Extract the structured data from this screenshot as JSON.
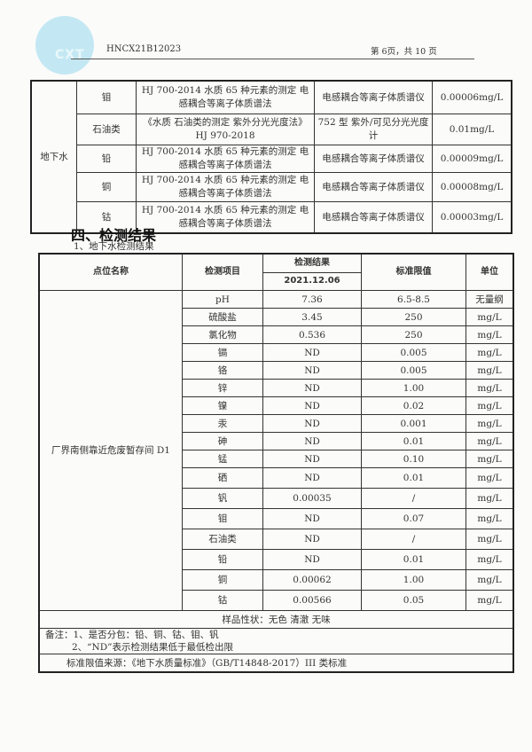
{
  "header": {
    "logo_text": "CXT",
    "report_no": "HNCX21B12023",
    "page_info": "第 6页，共 10 页"
  },
  "method_table": {
    "category": "地下水",
    "rows": [
      {
        "item": "钼",
        "method": "HJ 700-2014 水质 65 种元素的测定 电感耦合等离子体质谱法",
        "instrument": "电感耦合等离子体质谱仪",
        "limit": "0.00006mg/L"
      },
      {
        "item": "石油类",
        "method": "《水质 石油类的测定 紫外分光光度法》HJ 970-2018",
        "instrument": "752 型 紫外/可见分光光度计",
        "limit": "0.01mg/L"
      },
      {
        "item": "铅",
        "method": "HJ 700-2014 水质 65 种元素的测定 电感耦合等离子体质谱法",
        "instrument": "电感耦合等离子体质谱仪",
        "limit": "0.00009mg/L"
      },
      {
        "item": "铜",
        "method": "HJ 700-2014 水质 65 种元素的测定 电感耦合等离子体质谱法",
        "instrument": "电感耦合等离子体质谱仪",
        "limit": "0.00008mg/L"
      },
      {
        "item": "钴",
        "method": "HJ 700-2014 水质 65 种元素的测定 电感耦合等离子体质谱法",
        "instrument": "电感耦合等离子体质谱仪",
        "limit": "0.00003mg/L"
      }
    ]
  },
  "section_title": "四、检测结果",
  "subsection_title": "1、地下水检测结果",
  "results_table": {
    "headers": {
      "location": "点位名称",
      "item": "检测项目",
      "result": "检测结果",
      "date": "2021.12.06",
      "standard": "标准限值",
      "unit": "单位"
    },
    "location": "厂界南侧靠近危废暂存间 D1",
    "rows": [
      {
        "item": "pH",
        "result": "7.36",
        "standard": "6.5-8.5",
        "unit": "无量纲"
      },
      {
        "item": "硫酸盐",
        "result": "3.45",
        "standard": "250",
        "unit": "mg/L"
      },
      {
        "item": "氯化物",
        "result": "0.536",
        "standard": "250",
        "unit": "mg/L"
      },
      {
        "item": "镉",
        "result": "ND",
        "standard": "0.005",
        "unit": "mg/L"
      },
      {
        "item": "铬",
        "result": "ND",
        "standard": "0.005",
        "unit": "mg/L"
      },
      {
        "item": "锌",
        "result": "ND",
        "standard": "1.00",
        "unit": "mg/L"
      },
      {
        "item": "镍",
        "result": "ND",
        "standard": "0.02",
        "unit": "mg/L"
      },
      {
        "item": "汞",
        "result": "ND",
        "standard": "0.001",
        "unit": "mg/L"
      },
      {
        "item": "砷",
        "result": "ND",
        "standard": "0.01",
        "unit": "mg/L"
      },
      {
        "item": "锰",
        "result": "ND",
        "standard": "0.10",
        "unit": "mg/L"
      },
      {
        "item": "硒",
        "result": "ND",
        "standard": "0.01",
        "unit": "mg/L"
      },
      {
        "item": "钒",
        "result": "0.00035",
        "standard": "/",
        "unit": "mg/L"
      },
      {
        "item": "钼",
        "result": "ND",
        "standard": "0.07",
        "unit": "mg/L"
      },
      {
        "item": "石油类",
        "result": "ND",
        "standard": "/",
        "unit": "mg/L"
      },
      {
        "item": "铅",
        "result": "ND",
        "standard": "0.01",
        "unit": "mg/L"
      },
      {
        "item": "铜",
        "result": "0.00062",
        "standard": "1.00",
        "unit": "mg/L"
      },
      {
        "item": "钴",
        "result": "0.00566",
        "standard": "0.05",
        "unit": "mg/L"
      }
    ],
    "sample_desc": "样品性状：无色 清澈 无味",
    "note1": "备注：1、是否分包：铅、铜、钴、钼、钒",
    "note2": "2、“ND”表示检测结果低于最低检出限",
    "standard_source": "标准限值来源：《地下水质量标准》（GB/T14848-2017）III 类标准"
  }
}
